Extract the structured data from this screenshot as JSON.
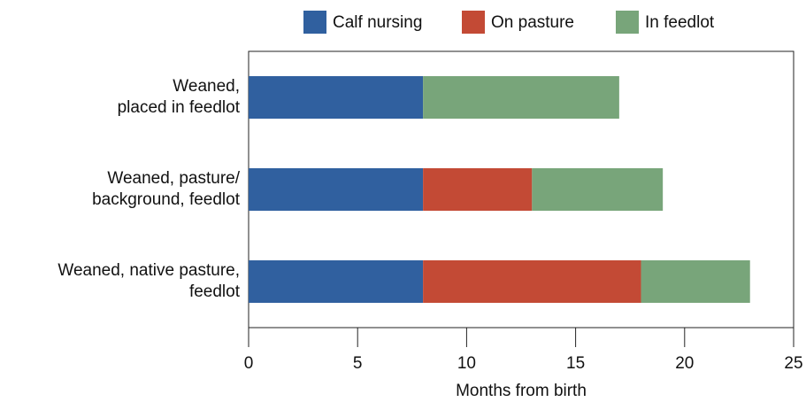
{
  "chart_data": {
    "type": "hbar-stacked",
    "categories": [
      [
        "Weaned,",
        "placed in feedlot"
      ],
      [
        "Weaned, pasture/",
        "background, feedlot"
      ],
      [
        "Weaned, native pasture,",
        "feedlot"
      ]
    ],
    "series": [
      {
        "name": "Calf nursing",
        "color": "#30609f",
        "values": [
          8,
          8,
          8
        ]
      },
      {
        "name": "On pasture",
        "color": "#c34a35",
        "values": [
          null,
          5,
          10
        ]
      },
      {
        "name": "In feedlot",
        "color": "#78a57a",
        "values": [
          9,
          6,
          5
        ]
      }
    ],
    "xlabel": "Months from birth",
    "xlim": [
      0,
      25
    ],
    "xticks": [
      0,
      5,
      10,
      15,
      20,
      25
    ]
  }
}
